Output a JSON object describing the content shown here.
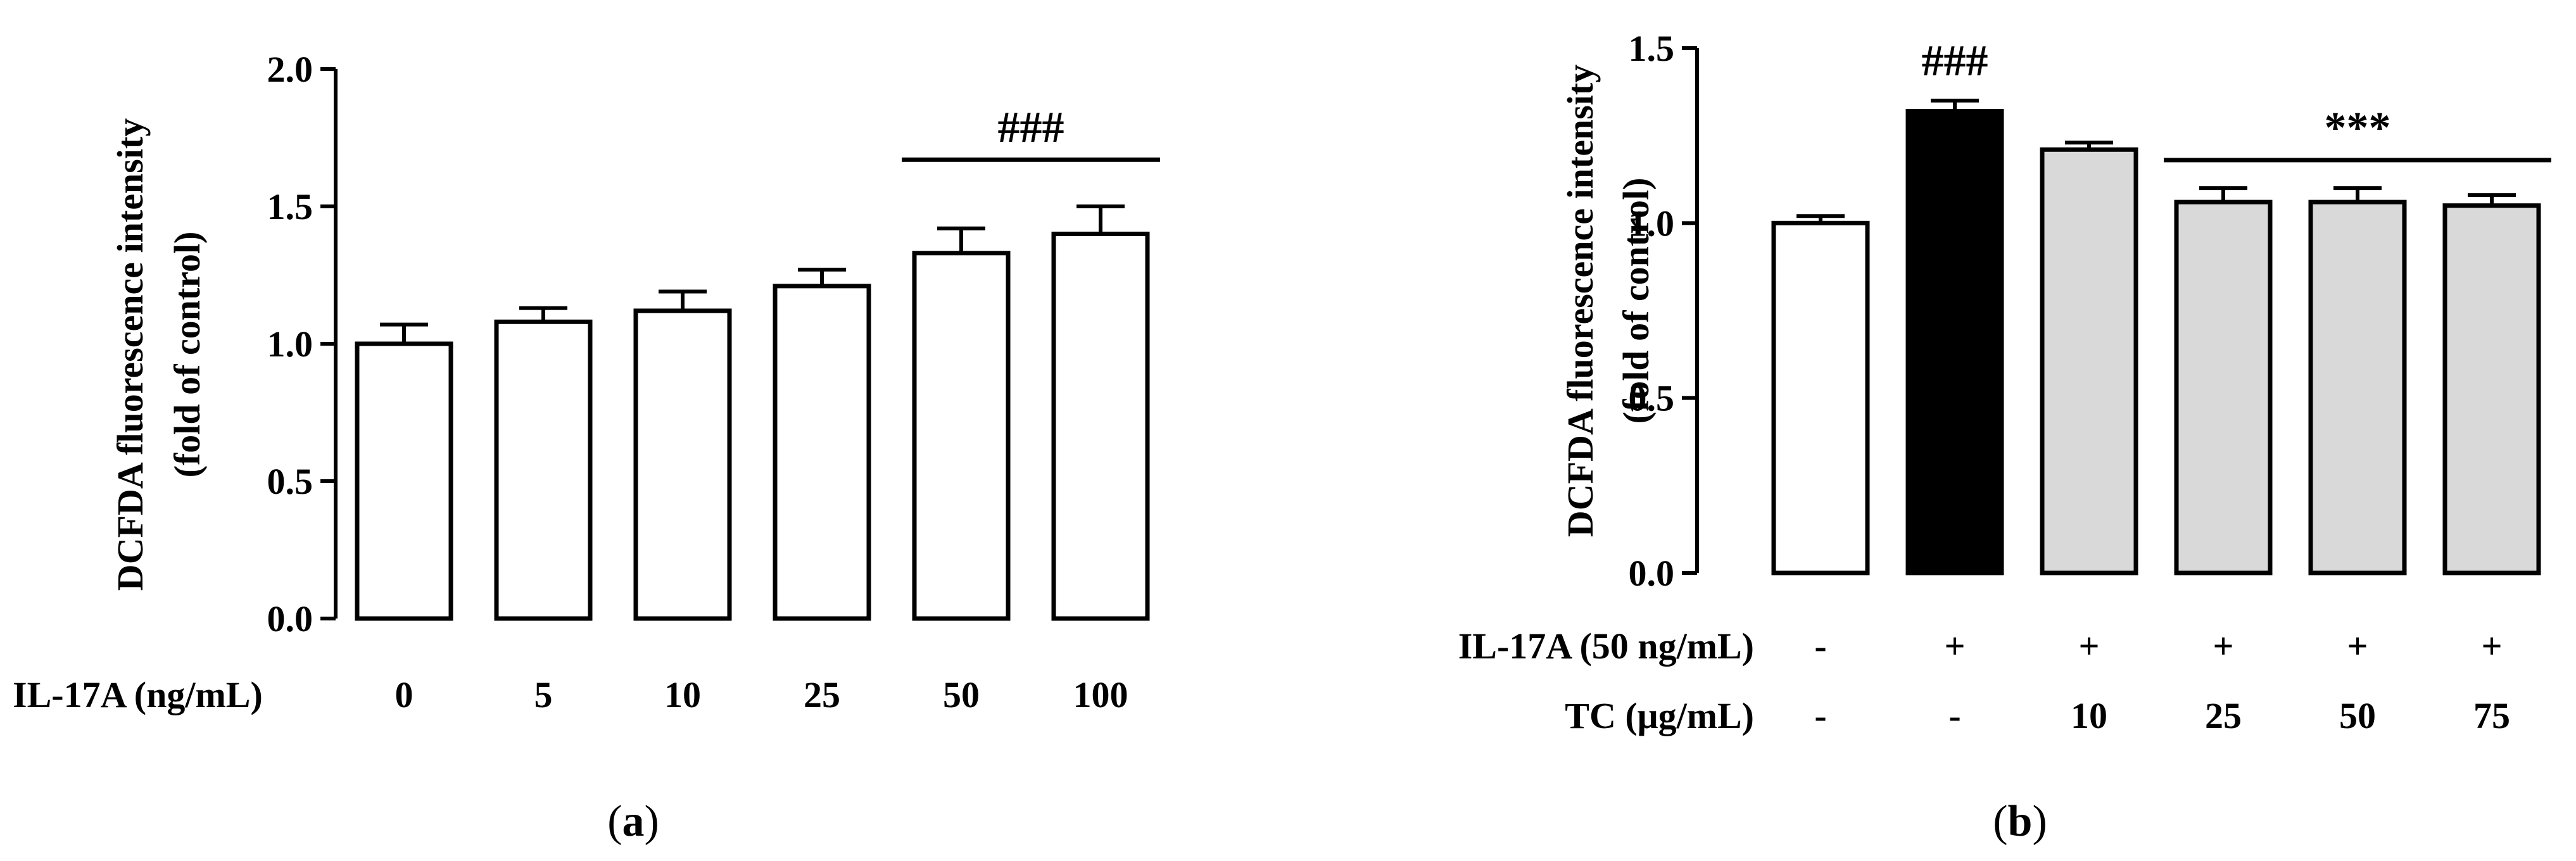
{
  "chart_data": [
    {
      "type": "bar",
      "panel_label": "a",
      "ylabel_line1": "DCFDA fluorescence intensity",
      "ylabel_line2": "(fold of control)",
      "ylim": [
        0,
        2.0
      ],
      "yticks": [
        "0.0",
        "0.5",
        "1.0",
        "1.5",
        "2.0"
      ],
      "ytick_values": [
        0,
        0.5,
        1.0,
        1.5,
        2.0
      ],
      "x_row_label": "IL-17A (ng/mL)",
      "categories": [
        "0",
        "5",
        "10",
        "25",
        "50",
        "100"
      ],
      "values": [
        1.0,
        1.08,
        1.12,
        1.21,
        1.33,
        1.4
      ],
      "errors": [
        0.07,
        0.05,
        0.07,
        0.06,
        0.09,
        0.1
      ],
      "bar_colors": [
        "#ffffff",
        "#ffffff",
        "#ffffff",
        "#ffffff",
        "#ffffff",
        "#ffffff"
      ],
      "significance": {
        "label": "###",
        "from_index": 4,
        "to_index": 5,
        "y": 1.67
      }
    },
    {
      "type": "bar",
      "panel_label": "b",
      "ylabel_line1": "DCFDA fluorescence intensity",
      "ylabel_line2": "(fold of control)",
      "ylim": [
        0,
        1.5
      ],
      "yticks": [
        "0.0",
        "0.5",
        "1.0",
        "1.5"
      ],
      "ytick_values": [
        0,
        0.5,
        1.0,
        1.5
      ],
      "row_labels": [
        "IL-17A (50 ng/mL)",
        "TC (μg/mL)"
      ],
      "rows": [
        [
          "-",
          "+",
          "+",
          "+",
          "+",
          "+"
        ],
        [
          "-",
          "-",
          "10",
          "25",
          "50",
          "75"
        ]
      ],
      "values": [
        1.0,
        1.32,
        1.21,
        1.06,
        1.06,
        1.05
      ],
      "errors": [
        0.02,
        0.03,
        0.02,
        0.04,
        0.04,
        0.03
      ],
      "bar_colors": [
        "#ffffff",
        "#000000",
        "#d9d9d9",
        "#d9d9d9",
        "#d9d9d9",
        "#d9d9d9"
      ],
      "bar_annotation": {
        "index": 1,
        "label": "###"
      },
      "significance": {
        "label": "***",
        "from_index": 3,
        "to_index": 5,
        "y": 1.18
      }
    }
  ]
}
